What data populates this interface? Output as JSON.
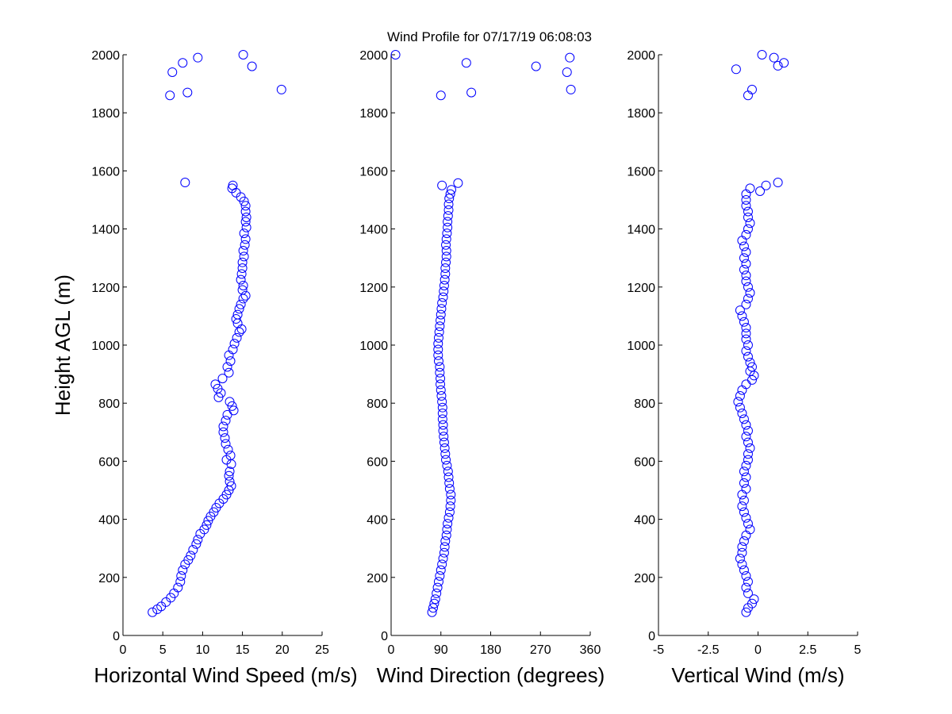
{
  "figure": {
    "title": "Wind Profile for  07/17/19 06:08:03",
    "marker_color": "#0000ff"
  },
  "chart_data": [
    {
      "type": "scatter",
      "id": "speed",
      "title": "",
      "xlabel": "Horizontal Wind Speed (m/s)",
      "ylabel": "Height AGL (m)",
      "xlim": [
        0,
        25
      ],
      "ylim": [
        0,
        2000
      ],
      "xticks": [
        0,
        5,
        10,
        15,
        20,
        25
      ],
      "xtick_labels": [
        "0",
        "5",
        "10",
        "15",
        "20",
        "25"
      ],
      "yticks": [
        0,
        200,
        400,
        600,
        800,
        1000,
        1200,
        1400,
        1600,
        1800,
        2000
      ],
      "ytick_labels": [
        "0",
        "200",
        "400",
        "600",
        "800",
        "1000",
        "1200",
        "1400",
        "1600",
        "1800",
        "2000"
      ],
      "grid": false,
      "points": [
        [
          3.7,
          80
        ],
        [
          4.3,
          90
        ],
        [
          4.8,
          100
        ],
        [
          5.4,
          115
        ],
        [
          6,
          130
        ],
        [
          6.4,
          145
        ],
        [
          6.9,
          165
        ],
        [
          7.2,
          185
        ],
        [
          7.3,
          205
        ],
        [
          7.5,
          225
        ],
        [
          7.8,
          245
        ],
        [
          8.2,
          260
        ],
        [
          8.5,
          275
        ],
        [
          8.8,
          295
        ],
        [
          9.2,
          315
        ],
        [
          9.4,
          330
        ],
        [
          9.7,
          350
        ],
        [
          10.2,
          365
        ],
        [
          10.5,
          380
        ],
        [
          10.7,
          395
        ],
        [
          11,
          410
        ],
        [
          11.4,
          425
        ],
        [
          11.7,
          440
        ],
        [
          12.1,
          455
        ],
        [
          12.6,
          470
        ],
        [
          13,
          485
        ],
        [
          13.3,
          500
        ],
        [
          13.6,
          515
        ],
        [
          13.4,
          530
        ],
        [
          13.3,
          550
        ],
        [
          13.4,
          565
        ],
        [
          13.6,
          590
        ],
        [
          13,
          605
        ],
        [
          13.5,
          620
        ],
        [
          13.2,
          640
        ],
        [
          12.9,
          660
        ],
        [
          12.8,
          680
        ],
        [
          12.6,
          700
        ],
        [
          12.6,
          720
        ],
        [
          12.9,
          740
        ],
        [
          13.1,
          760
        ],
        [
          13.9,
          775
        ],
        [
          13.7,
          790
        ],
        [
          13.4,
          805
        ],
        [
          12,
          820
        ],
        [
          12.3,
          835
        ],
        [
          11.9,
          850
        ],
        [
          11.6,
          865
        ],
        [
          12.5,
          885
        ],
        [
          13.3,
          905
        ],
        [
          13.1,
          925
        ],
        [
          13.5,
          945
        ],
        [
          13.3,
          965
        ],
        [
          13.8,
          985
        ],
        [
          14,
          1005
        ],
        [
          14.3,
          1025
        ],
        [
          14.6,
          1045
        ],
        [
          14.9,
          1055
        ],
        [
          14.4,
          1075
        ],
        [
          14.2,
          1090
        ],
        [
          14.4,
          1105
        ],
        [
          14.6,
          1125
        ],
        [
          14.8,
          1140
        ],
        [
          15.1,
          1160
        ],
        [
          15.4,
          1170
        ],
        [
          15,
          1190
        ],
        [
          15.1,
          1205
        ],
        [
          14.8,
          1225
        ],
        [
          14.9,
          1245
        ],
        [
          15,
          1265
        ],
        [
          15,
          1285
        ],
        [
          15.2,
          1305
        ],
        [
          15.1,
          1325
        ],
        [
          15.3,
          1345
        ],
        [
          15.4,
          1365
        ],
        [
          15.2,
          1385
        ],
        [
          15.5,
          1405
        ],
        [
          15.4,
          1425
        ],
        [
          15.5,
          1440
        ],
        [
          15.4,
          1460
        ],
        [
          15.4,
          1480
        ],
        [
          15.2,
          1495
        ],
        [
          14.8,
          1510
        ],
        [
          14.2,
          1525
        ],
        [
          13.7,
          1540
        ],
        [
          13.8,
          1550
        ],
        [
          7.8,
          1560
        ],
        [
          5.9,
          1860
        ],
        [
          8.1,
          1870
        ],
        [
          19.9,
          1880
        ],
        [
          6.2,
          1940
        ],
        [
          16.2,
          1960
        ],
        [
          7.5,
          1972
        ],
        [
          9.4,
          1990
        ],
        [
          15.1,
          2000
        ]
      ]
    },
    {
      "type": "scatter",
      "id": "direction",
      "title": "",
      "xlabel": "Wind Direction (degrees)",
      "ylabel": "",
      "xlim": [
        0,
        360
      ],
      "ylim": [
        0,
        2000
      ],
      "xticks": [
        0,
        90,
        180,
        270,
        360
      ],
      "xtick_labels": [
        "0",
        "90",
        "180",
        "270",
        "360"
      ],
      "yticks": [
        0,
        200,
        400,
        600,
        800,
        1000,
        1200,
        1400,
        1600,
        1800,
        2000
      ],
      "ytick_labels": [
        "0",
        "200",
        "400",
        "600",
        "800",
        "1000",
        "1200",
        "1400",
        "1600",
        "1800",
        "2000"
      ],
      "grid": false,
      "points": [
        [
          74,
          80
        ],
        [
          76,
          95
        ],
        [
          78,
          110
        ],
        [
          80,
          125
        ],
        [
          82,
          145
        ],
        [
          84,
          165
        ],
        [
          86,
          185
        ],
        [
          88,
          205
        ],
        [
          90,
          225
        ],
        [
          92,
          245
        ],
        [
          94,
          265
        ],
        [
          96,
          285
        ],
        [
          97,
          305
        ],
        [
          98,
          325
        ],
        [
          100,
          345
        ],
        [
          101,
          365
        ],
        [
          102,
          385
        ],
        [
          104,
          405
        ],
        [
          106,
          425
        ],
        [
          107,
          445
        ],
        [
          108,
          465
        ],
        [
          108,
          485
        ],
        [
          106,
          505
        ],
        [
          105,
          525
        ],
        [
          104,
          545
        ],
        [
          103,
          565
        ],
        [
          101,
          585
        ],
        [
          99,
          605
        ],
        [
          98,
          625
        ],
        [
          97,
          645
        ],
        [
          96,
          665
        ],
        [
          95,
          685
        ],
        [
          94,
          705
        ],
        [
          94,
          725
        ],
        [
          93,
          745
        ],
        [
          93,
          765
        ],
        [
          93,
          785
        ],
        [
          92,
          805
        ],
        [
          91,
          825
        ],
        [
          90,
          845
        ],
        [
          89,
          865
        ],
        [
          89,
          885
        ],
        [
          88,
          905
        ],
        [
          88,
          925
        ],
        [
          86,
          945
        ],
        [
          85,
          965
        ],
        [
          85,
          985
        ],
        [
          85,
          1005
        ],
        [
          86,
          1025
        ],
        [
          87,
          1045
        ],
        [
          88,
          1065
        ],
        [
          89,
          1085
        ],
        [
          90,
          1105
        ],
        [
          91,
          1125
        ],
        [
          92,
          1145
        ],
        [
          94,
          1165
        ],
        [
          95,
          1185
        ],
        [
          96,
          1205
        ],
        [
          97,
          1225
        ],
        [
          98,
          1245
        ],
        [
          98,
          1265
        ],
        [
          99,
          1285
        ],
        [
          100,
          1305
        ],
        [
          100,
          1325
        ],
        [
          99,
          1345
        ],
        [
          100,
          1365
        ],
        [
          101,
          1385
        ],
        [
          102,
          1405
        ],
        [
          102,
          1425
        ],
        [
          103,
          1445
        ],
        [
          104,
          1465
        ],
        [
          104,
          1485
        ],
        [
          105,
          1505
        ],
        [
          107,
          1520
        ],
        [
          109,
          1535
        ],
        [
          92,
          1550
        ],
        [
          121,
          1558
        ],
        [
          90,
          1860
        ],
        [
          145,
          1870
        ],
        [
          325,
          1880
        ],
        [
          318,
          1940
        ],
        [
          262,
          1960
        ],
        [
          136,
          1972
        ],
        [
          323,
          1990
        ],
        [
          8,
          2000
        ]
      ]
    },
    {
      "type": "scatter",
      "id": "vertical",
      "title": "",
      "xlabel": "Vertical Wind (m/s)",
      "ylabel": "",
      "xlim": [
        -5,
        5
      ],
      "ylim": [
        0,
        2000
      ],
      "xticks": [
        -5,
        -2.5,
        0,
        2.5,
        5
      ],
      "xtick_labels": [
        "-5",
        "-2.5",
        "0",
        "2.5",
        "5"
      ],
      "yticks": [
        0,
        200,
        400,
        600,
        800,
        1000,
        1200,
        1400,
        1600,
        1800,
        2000
      ],
      "ytick_labels": [
        "0",
        "200",
        "400",
        "600",
        "800",
        "1000",
        "1200",
        "1400",
        "1600",
        "1800",
        "2000"
      ],
      "grid": false,
      "points": [
        [
          -0.6,
          80
        ],
        [
          -0.5,
          95
        ],
        [
          -0.3,
          110
        ],
        [
          -0.2,
          125
        ],
        [
          -0.5,
          145
        ],
        [
          -0.6,
          165
        ],
        [
          -0.5,
          185
        ],
        [
          -0.6,
          205
        ],
        [
          -0.7,
          225
        ],
        [
          -0.8,
          245
        ],
        [
          -0.9,
          265
        ],
        [
          -0.8,
          285
        ],
        [
          -0.8,
          305
        ],
        [
          -0.7,
          325
        ],
        [
          -0.6,
          345
        ],
        [
          -0.4,
          365
        ],
        [
          -0.5,
          385
        ],
        [
          -0.6,
          405
        ],
        [
          -0.7,
          425
        ],
        [
          -0.8,
          445
        ],
        [
          -0.7,
          465
        ],
        [
          -0.8,
          485
        ],
        [
          -0.6,
          505
        ],
        [
          -0.7,
          525
        ],
        [
          -0.6,
          545
        ],
        [
          -0.7,
          565
        ],
        [
          -0.6,
          585
        ],
        [
          -0.5,
          605
        ],
        [
          -0.5,
          625
        ],
        [
          -0.4,
          645
        ],
        [
          -0.5,
          665
        ],
        [
          -0.6,
          685
        ],
        [
          -0.5,
          705
        ],
        [
          -0.6,
          725
        ],
        [
          -0.7,
          745
        ],
        [
          -0.8,
          765
        ],
        [
          -0.9,
          785
        ],
        [
          -1,
          805
        ],
        [
          -0.9,
          825
        ],
        [
          -0.8,
          845
        ],
        [
          -0.6,
          865
        ],
        [
          -0.3,
          880
        ],
        [
          -0.2,
          895
        ],
        [
          -0.4,
          910
        ],
        [
          -0.3,
          925
        ],
        [
          -0.4,
          940
        ],
        [
          -0.5,
          960
        ],
        [
          -0.6,
          980
        ],
        [
          -0.5,
          1000
        ],
        [
          -0.6,
          1020
        ],
        [
          -0.6,
          1040
        ],
        [
          -0.6,
          1060
        ],
        [
          -0.7,
          1080
        ],
        [
          -0.8,
          1100
        ],
        [
          -0.9,
          1120
        ],
        [
          -0.6,
          1140
        ],
        [
          -0.5,
          1160
        ],
        [
          -0.4,
          1180
        ],
        [
          -0.5,
          1200
        ],
        [
          -0.6,
          1220
        ],
        [
          -0.6,
          1240
        ],
        [
          -0.7,
          1260
        ],
        [
          -0.6,
          1280
        ],
        [
          -0.7,
          1300
        ],
        [
          -0.6,
          1320
        ],
        [
          -0.7,
          1340
        ],
        [
          -0.8,
          1360
        ],
        [
          -0.6,
          1380
        ],
        [
          -0.5,
          1400
        ],
        [
          -0.4,
          1420
        ],
        [
          -0.5,
          1440
        ],
        [
          -0.5,
          1460
        ],
        [
          -0.6,
          1480
        ],
        [
          -0.6,
          1500
        ],
        [
          -0.6,
          1520
        ],
        [
          -0.4,
          1540
        ],
        [
          0.4,
          1550
        ],
        [
          1,
          1560
        ],
        [
          0.1,
          1530
        ],
        [
          -0.5,
          1860
        ],
        [
          -0.3,
          1880
        ],
        [
          -1.1,
          1950
        ],
        [
          1,
          1962
        ],
        [
          1.3,
          1972
        ],
        [
          0.8,
          1990
        ],
        [
          0.2,
          2000
        ]
      ]
    }
  ]
}
